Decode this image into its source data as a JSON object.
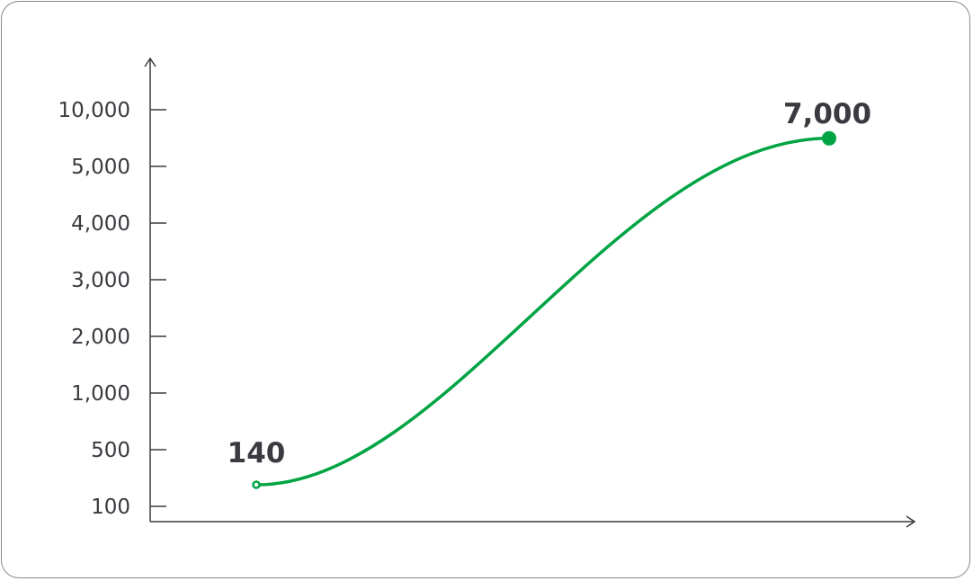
{
  "chart_data": {
    "type": "line",
    "title": "",
    "xlabel": "",
    "ylabel": "",
    "y_ticks": [
      "100",
      "500",
      "1,000",
      "2,000",
      "3,000",
      "4,000",
      "5,000",
      "10,000"
    ],
    "y_tick_values": [
      100,
      500,
      1000,
      2000,
      3000,
      4000,
      5000,
      10000
    ],
    "y_scale": "non-uniform (ticks evenly spaced)",
    "grid": false,
    "series": [
      {
        "values": [
          140,
          7000
        ],
        "labels": [
          "140",
          "7,000"
        ],
        "color": "#00a443",
        "smooth": true
      }
    ]
  }
}
